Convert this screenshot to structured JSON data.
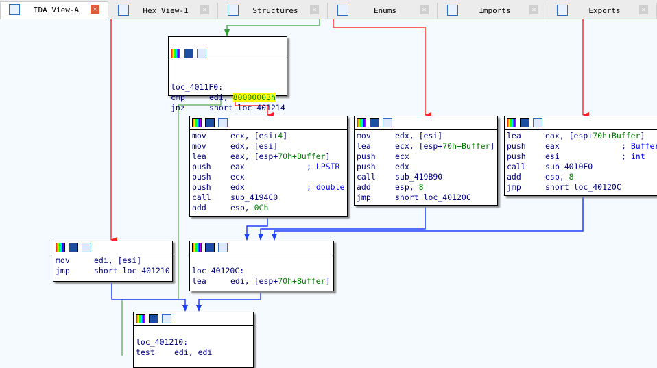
{
  "tabs": [
    {
      "label": "IDA View-A",
      "icon": "disassembly-icon",
      "active": true
    },
    {
      "label": "Hex View-1",
      "icon": "hex-icon"
    },
    {
      "label": "Structures",
      "icon": "structures-icon"
    },
    {
      "label": "Enums",
      "icon": "enums-icon"
    },
    {
      "label": "Imports",
      "icon": "imports-icon"
    },
    {
      "label": "Exports",
      "icon": "exports-icon"
    }
  ],
  "colors": {
    "true_edge": "#ff3030",
    "false_edge": "#50b050",
    "uncond_edge": "#1f3fff",
    "highlight": "#ffff00"
  },
  "blocks": {
    "b1": {
      "label": "loc_4011F0:",
      "l1": [
        "cmp",
        "edi, ",
        "80000003h"
      ],
      "l2": [
        "jnz",
        "short loc_401214"
      ]
    },
    "b2": {
      "lines": [
        [
          "mov",
          "ecx, [esi+",
          "4",
          "]"
        ],
        [
          "mov",
          "edx, [esi]",
          "",
          ""
        ],
        [
          "lea",
          "eax, [esp+",
          "70h+Buffer",
          "]"
        ],
        [
          "push",
          "eax",
          "",
          "; LPSTR"
        ],
        [
          "push",
          "ecx",
          "",
          ""
        ],
        [
          "push",
          "edx",
          "",
          "; double"
        ],
        [
          "call",
          "sub_4194C0",
          "",
          ""
        ],
        [
          "add",
          "esp, ",
          "0Ch",
          ""
        ]
      ]
    },
    "b3": {
      "lines": [
        [
          "mov",
          "edx, [esi]",
          "",
          ""
        ],
        [
          "lea",
          "ecx, [esp+",
          "70h+Buffer",
          "]"
        ],
        [
          "push",
          "ecx",
          "",
          ""
        ],
        [
          "push",
          "edx",
          "",
          ""
        ],
        [
          "call",
          "sub_419B90",
          "",
          ""
        ],
        [
          "add",
          "esp, ",
          "8",
          ""
        ],
        [
          "jmp",
          "short loc_40120C",
          "",
          ""
        ]
      ]
    },
    "b4": {
      "lines": [
        [
          "lea",
          "eax, [esp+",
          "70h+Buffer",
          "]"
        ],
        [
          "push",
          "eax",
          "",
          "; Buffer"
        ],
        [
          "push",
          "esi",
          "",
          "; int"
        ],
        [
          "call",
          "sub_4010F0",
          "",
          ""
        ],
        [
          "add",
          "esp, ",
          "8",
          ""
        ],
        [
          "jmp",
          "short loc_40120C",
          "",
          ""
        ]
      ]
    },
    "b5": {
      "lines": [
        [
          "mov",
          "edi, [esi]",
          "",
          ""
        ],
        [
          "jmp",
          "short loc_401210",
          "",
          ""
        ]
      ]
    },
    "b6": {
      "label": "loc_40120C:",
      "lines": [
        [
          "lea",
          "edi, [esp+",
          "70h+Buffer",
          "]"
        ]
      ]
    },
    "b7": {
      "label": "loc_401210:",
      "lines": [
        [
          "test",
          "edi, edi",
          "",
          ""
        ]
      ]
    }
  }
}
